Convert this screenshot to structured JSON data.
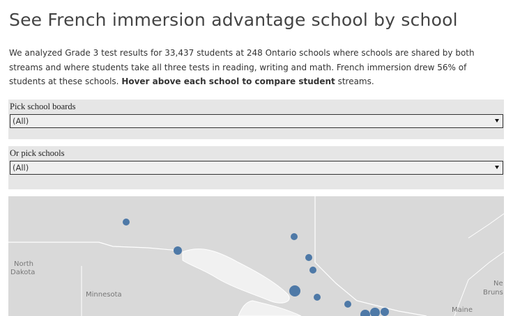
{
  "header": {
    "title": "See French immersion advantage school by school"
  },
  "intro": [
    "We analyzed Grade 3 test results for 33,437 students at 248 Ontario schools where schools are shared by both streams and where students take all three tests in reading, writing and math. French immersion drew 56% of students at these schools. ",
    "Hover above each school to compare student",
    " streams."
  ],
  "filters": [
    {
      "label": "Pick school boards",
      "value": "(All)"
    },
    {
      "label": "Or pick schools",
      "value": "(All)"
    }
  ],
  "map": {
    "labels": [
      "North",
      "Dakota",
      "Minnesota",
      "Maine",
      "Ne",
      "Bruns"
    ]
  }
}
